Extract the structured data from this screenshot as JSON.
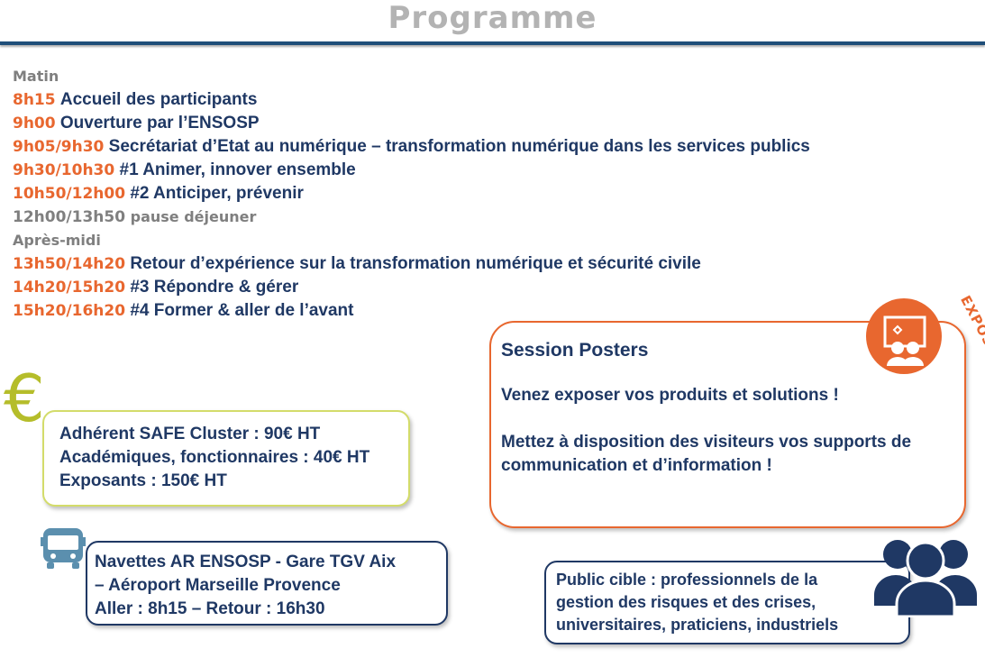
{
  "title": "Programme",
  "program": [
    {
      "time": "",
      "text": "Matin",
      "style": "section"
    },
    {
      "time": "8h15",
      "text": "Accueil des participants"
    },
    {
      "time": "9h00",
      "text": "Ouverture par l’ENSOSP"
    },
    {
      "time": "9h05/9h30",
      "text": "Secrétariat d’Etat au numérique – transformation numérique dans les services publics"
    },
    {
      "time": "9h30/10h30",
      "text": "#1 Animer, innover ensemble"
    },
    {
      "time": "10h50/12h00",
      "text": "#2 Anticiper, prévenir"
    },
    {
      "time": "12h00/13h50",
      "text": "pause déjeuner",
      "style": "gray"
    },
    {
      "time": "",
      "text": "Après-midi",
      "style": "section"
    },
    {
      "time": "13h50/14h20",
      "text": "Retour d’expérience sur la transformation numérique et sécurité civile"
    },
    {
      "time": "14h20/15h20",
      "text": "#3 Répondre & gérer"
    },
    {
      "time": "15h20/16h20",
      "text": "#4 Former & aller de l’avant"
    }
  ],
  "pricing": {
    "icon": "euro-icon",
    "symbol": "€",
    "lines": [
      "Adhérent SAFE Cluster : 90€ HT",
      "Académiques, fonctionnaires : 40€ HT",
      "Exposants : 150€ HT"
    ]
  },
  "shuttle": {
    "icon": "bus-icon",
    "lines": [
      "Navettes AR ENSOSP - Gare TGV Aix",
      "– Aéroport Marseille Provence",
      "Aller : 8h15 – Retour : 16h30"
    ]
  },
  "posters": {
    "badge": "EXPOSITION",
    "icon": "exhibition-icon",
    "title": "Session Posters",
    "p1": "Venez exposer vos produits et solutions !",
    "p2": "Mettez à disposition des visiteurs vos supports de communication et d’information !"
  },
  "audience": {
    "icon": "people-icon",
    "lines": [
      "Public cible : professionnels de la",
      "gestion des risques et des crises,",
      "universitaires, praticiens, industriels"
    ]
  },
  "colors": {
    "orange": "#e8672f",
    "navy": "#1f3864",
    "gray": "#7f7f7f",
    "lime": "#c6d44a"
  }
}
